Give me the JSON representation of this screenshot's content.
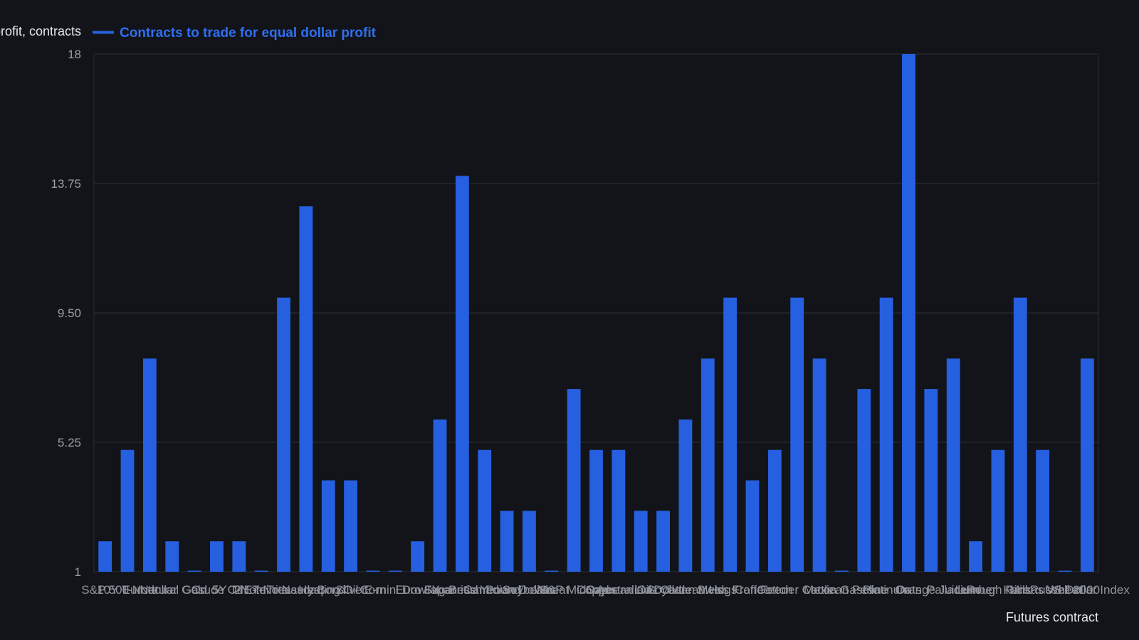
{
  "colors": {
    "background": "#121419",
    "bar": "#2660e0",
    "legend_text": "#2f6ff0",
    "grid": "#2a2e36",
    "frame": "#2a2e36"
  },
  "chart_data": {
    "type": "bar",
    "title": "",
    "ylabel": "Contracts to trade for equal dollar profit, contracts",
    "xlabel": "Futures contract",
    "ylim": [
      1,
      18
    ],
    "yticks": [
      "1",
      "5.25",
      "9.50",
      "13.75",
      "18"
    ],
    "grid": true,
    "legend_position": "top-left",
    "series": [
      {
        "name": "Contracts to trade for equal dollar profit",
        "values": [
          2,
          5,
          8,
          2,
          1,
          2,
          2,
          1,
          10,
          13,
          4,
          4,
          1,
          1,
          2,
          6,
          14,
          5,
          3,
          3,
          1,
          7,
          5,
          5,
          3,
          3,
          6,
          8,
          10,
          4,
          5,
          10,
          8,
          1,
          7,
          10,
          18,
          7,
          8,
          2,
          5,
          10,
          5,
          1,
          8
        ]
      }
    ],
    "categories": [
      "S&P 500",
      "10Y T-Note",
      "Eurodollar",
      "Natural Gas",
      "Gold",
      "Crude Oil",
      "5Y T-Note",
      "2Y T-Note",
      "E-mini Nasdaq",
      "Treasury Bond",
      "Heating Oil",
      "Silver",
      "Corn",
      "E-mini Dow",
      "Euro FX",
      "Sugar",
      "Japanese Yen",
      "British Pound",
      "Canadian Dollar",
      "Soybeans",
      "Wheat",
      "S&P MidCap",
      "Copper",
      "Soybean Oil",
      "Australian Dollar",
      "Live Cattle",
      "Soybean Meal",
      "Lean Hogs",
      "Swiss Franc",
      "Coffee",
      "Cotton",
      "Feeder Cattle",
      "Cocoa",
      "Mexican Peso",
      "Gasoline",
      "Platinum",
      "Oats",
      "Orange Juice",
      "Palladium",
      "Lumber",
      "Rough Rice",
      "Milk",
      "Kansas Wheat",
      "Russell 2000",
      "US Dollar Index"
    ]
  }
}
